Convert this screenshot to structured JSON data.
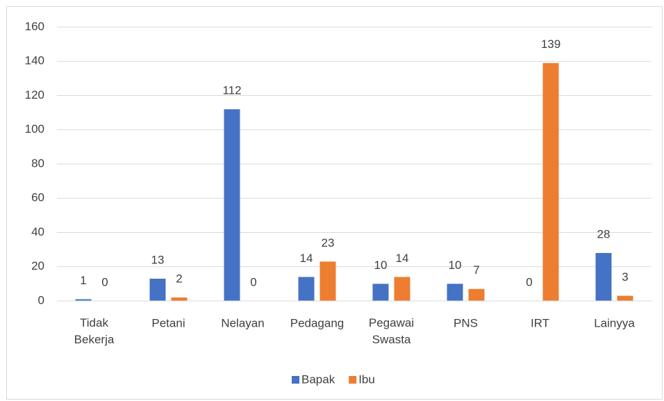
{
  "chart_data": {
    "type": "bar",
    "categories": [
      "Tidak Bekerja",
      "Petani",
      "Nelayan",
      "Pedagang",
      "Pegawai Swasta",
      "PNS",
      "IRT",
      "Lainyya"
    ],
    "series": [
      {
        "name": "Bapak",
        "color": "#4472c4",
        "values": [
          1,
          13,
          112,
          14,
          10,
          10,
          0,
          28
        ]
      },
      {
        "name": "Ibu",
        "color": "#ed7d31",
        "values": [
          0,
          2,
          0,
          23,
          14,
          7,
          139,
          3
        ]
      }
    ],
    "ylim": [
      0,
      160
    ],
    "yticks": [
      0,
      20,
      40,
      60,
      80,
      100,
      120,
      140,
      160
    ],
    "grid": true,
    "legend": "bottom"
  }
}
